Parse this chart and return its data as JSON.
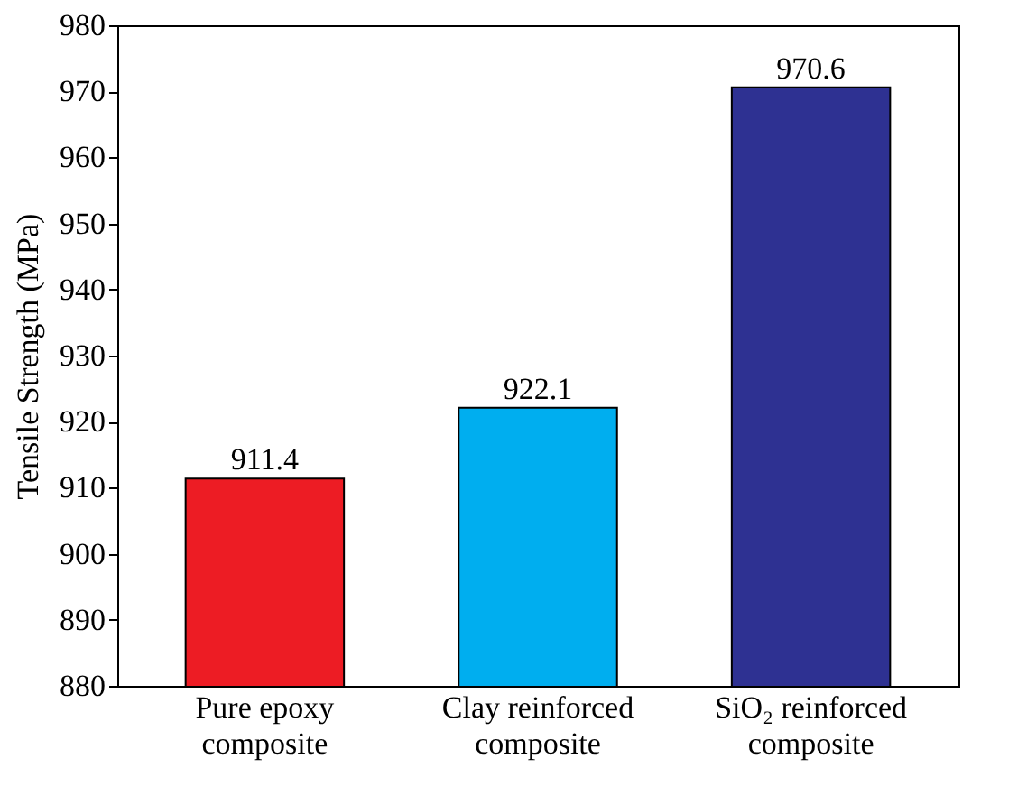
{
  "chart_data": {
    "type": "bar",
    "ylabel": "Tensile Strength (MPa)",
    "categories": [
      "Pure epoxy\ncomposite",
      "Clay reinforced\ncomposite",
      "SiO₂ reinforced\ncomposite"
    ],
    "values": [
      911.4,
      922.1,
      970.6
    ],
    "colors": [
      "#ed1c24",
      "#00aeef",
      "#2e3192"
    ],
    "ylim": [
      880,
      980
    ],
    "yticks": [
      880,
      890,
      900,
      910,
      920,
      930,
      940,
      950,
      960,
      970,
      980
    ],
    "data_labels": true,
    "grid": false
  }
}
